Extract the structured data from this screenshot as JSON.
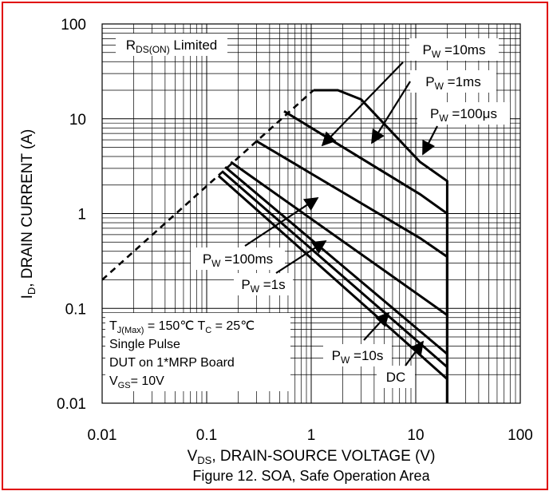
{
  "chart_data": {
    "type": "line",
    "title": "Figure 12. SOA, Safe Operation Area",
    "xlabel": {
      "main": "V",
      "sub": "DS",
      "rest": ", DRAIN-SOURCE VOLTAGE (V)"
    },
    "ylabel": {
      "main": "I",
      "sub": "D",
      "rest": ", DRAIN CURRENT (A)"
    },
    "x_scale": "log",
    "y_scale": "log",
    "xlim": [
      0.01,
      100
    ],
    "ylim": [
      0.01,
      100
    ],
    "x_ticks": [
      {
        "value": 0.01,
        "label": "0.01"
      },
      {
        "value": 0.1,
        "label": "0.1"
      },
      {
        "value": 1,
        "label": "1"
      },
      {
        "value": 10,
        "label": "10"
      },
      {
        "value": 100,
        "label": "100"
      }
    ],
    "y_ticks": [
      {
        "value": 100,
        "label": "100"
      },
      {
        "value": 10,
        "label": "10"
      },
      {
        "value": 1,
        "label": "1"
      },
      {
        "value": 0.1,
        "label": "0.1"
      },
      {
        "value": 0.01,
        "label": "0.01"
      }
    ],
    "grid": true,
    "rds_limit": {
      "label": {
        "main": "R",
        "sub": "DS(ON)",
        "rest": " Limited"
      },
      "points": [
        [
          0.01,
          0.2
        ],
        [
          1.05,
          20
        ]
      ]
    },
    "series": [
      {
        "name": {
          "main": "P",
          "sub": "W",
          "rest": " =100μs"
        },
        "points": [
          [
            1.05,
            20
          ],
          [
            1.8,
            20
          ],
          [
            3,
            16
          ],
          [
            11,
            3.5
          ],
          [
            20,
            2.2
          ],
          [
            20,
            0.01
          ]
        ]
      },
      {
        "name": {
          "main": "P",
          "sub": "W",
          "rest": " =1ms"
        },
        "points": [
          [
            0.55,
            12
          ],
          [
            11,
            1.6
          ],
          [
            20,
            1.0
          ],
          [
            20,
            0.01
          ]
        ]
      },
      {
        "name": {
          "main": "P",
          "sub": "W",
          "rest": " =10ms"
        },
        "points": [
          [
            0.3,
            5.8
          ],
          [
            11,
            0.55
          ],
          [
            20,
            0.35
          ],
          [
            20,
            0.01
          ]
        ]
      },
      {
        "name": {
          "main": "P",
          "sub": "W",
          "rest": " =100ms"
        },
        "points": [
          [
            0.17,
            3.5
          ],
          [
            20,
            0.085
          ]
        ]
      },
      {
        "name": {
          "main": "P",
          "sub": "W",
          "rest": " =1s"
        },
        "points": [
          [
            0.15,
            3.1
          ],
          [
            20,
            0.033
          ]
        ]
      },
      {
        "name": {
          "main": "P",
          "sub": "W",
          "rest": " =10s"
        },
        "points": [
          [
            0.14,
            2.8
          ],
          [
            20,
            0.024
          ]
        ]
      },
      {
        "name": {
          "main": "DC",
          "sub": "",
          "rest": ""
        },
        "points": [
          [
            0.13,
            2.5
          ],
          [
            20,
            0.018
          ]
        ]
      }
    ],
    "annotations": {
      "conditions": [
        {
          "parts": [
            {
              "t": "T"
            },
            {
              "t": "J(Max)",
              "sub": true
            },
            {
              "t": " = 150℃  T"
            },
            {
              "t": "C",
              "sub": true
            },
            {
              "t": " = 25℃"
            }
          ]
        },
        {
          "parts": [
            {
              "t": "Single Pulse"
            }
          ]
        },
        {
          "parts": [
            {
              "t": "DUT on 1*MRP Board"
            }
          ]
        },
        {
          "parts": [
            {
              "t": "V"
            },
            {
              "t": "GS",
              "sub": true
            },
            {
              "t": "= 10V"
            }
          ]
        }
      ]
    },
    "colors": {
      "frame": "#e00000",
      "line": "#000000",
      "grid": "#000000"
    }
  }
}
